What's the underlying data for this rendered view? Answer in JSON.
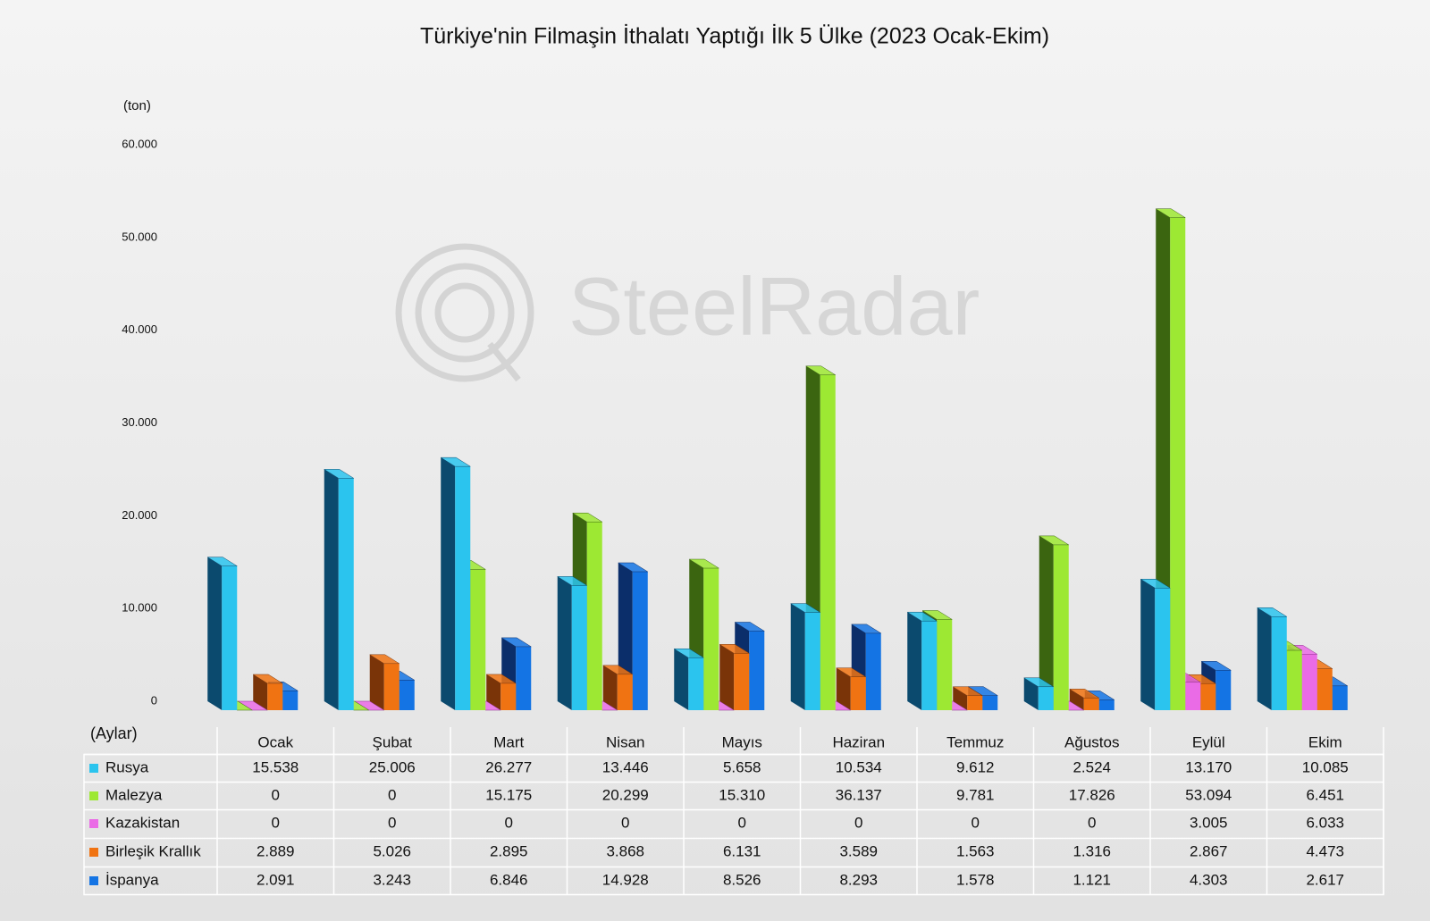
{
  "chart_data": {
    "type": "bar3d",
    "title": "Türkiye'nin Filmaşin İthalatı Yaptığı İlk 5 Ülke (2023 Ocak-Ekim)",
    "y_label": "(ton)",
    "x_label": "(Aylar)",
    "watermark": "SteelRadar",
    "grid": false,
    "categories": [
      "Ocak",
      "Şubat",
      "Mart",
      "Nisan",
      "Mayıs",
      "Haziran",
      "Temmuz",
      "Ağustos",
      "Eylül",
      "Ekim"
    ],
    "ylim": [
      0,
      60000
    ],
    "yticks": [
      0,
      {
        "value": 10000,
        "label": "10.000"
      },
      {
        "value": 20000,
        "label": "20.000"
      },
      {
        "value": 30000,
        "label": "30.000"
      },
      {
        "value": 40000,
        "label": "40.000"
      },
      {
        "value": 50000,
        "label": "50.000"
      },
      {
        "value": 60000,
        "label": "60.000"
      }
    ],
    "series": [
      {
        "name": "Rusya",
        "color": "#2bc4ee",
        "side_color": "#0b4a6e",
        "values": [
          15538,
          25006,
          26277,
          13446,
          5658,
          10534,
          9612,
          2524,
          13170,
          10085
        ],
        "value_labels": [
          "15.538",
          "25.006",
          "26.277",
          "13.446",
          "5.658",
          "10.534",
          "9.612",
          "2.524",
          "13.170",
          "10.085"
        ]
      },
      {
        "name": "Malezya",
        "color": "#9de833",
        "side_color": "#3b6510",
        "values": [
          0,
          0,
          15175,
          20299,
          15310,
          36137,
          9781,
          17826,
          53094,
          6451
        ],
        "value_labels": [
          "0",
          "0",
          "15.175",
          "20.299",
          "15.310",
          "36.137",
          "9.781",
          "17.826",
          "53.094",
          "6.451"
        ]
      },
      {
        "name": "Kazakistan",
        "color": "#ea6be6",
        "side_color": "#8a2e8a",
        "values": [
          0,
          0,
          0,
          0,
          0,
          0,
          0,
          0,
          3005,
          6033
        ],
        "value_labels": [
          "0",
          "0",
          "0",
          "0",
          "0",
          "0",
          "0",
          "0",
          "3.005",
          "6.033"
        ]
      },
      {
        "name": "Birleşik Krallık",
        "color": "#f07312",
        "side_color": "#7a3408",
        "values": [
          2889,
          5026,
          2895,
          3868,
          6131,
          3589,
          1563,
          1316,
          2867,
          4473
        ],
        "value_labels": [
          "2.889",
          "5.026",
          "2.895",
          "3.868",
          "6.131",
          "3.589",
          "1.563",
          "1.316",
          "2.867",
          "4.473"
        ]
      },
      {
        "name": "İspanya",
        "color": "#1474e4",
        "side_color": "#0b2e6a",
        "values": [
          2091,
          3243,
          6846,
          14928,
          8526,
          8293,
          1578,
          1121,
          4303,
          2617
        ],
        "value_labels": [
          "2.091",
          "3.243",
          "6.846",
          "14.928",
          "8.526",
          "8.293",
          "1.578",
          "1.121",
          "4.303",
          "2.617"
        ]
      }
    ]
  }
}
